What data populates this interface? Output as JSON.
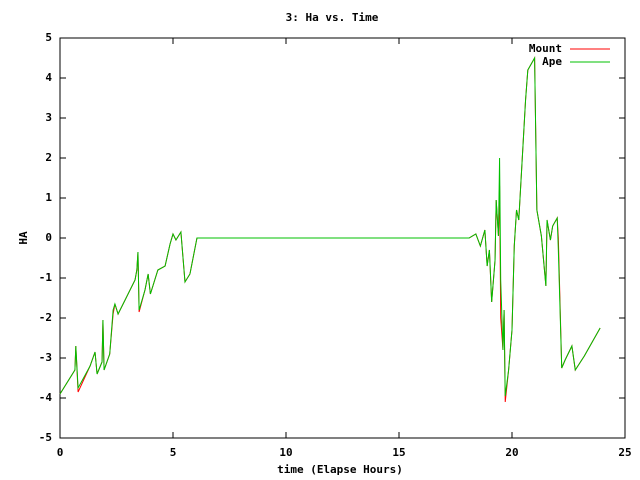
{
  "chart_data": {
    "type": "line",
    "title": "3: Ha vs. Time",
    "x_label": "time (Elapse Hours)",
    "y_label": "HA",
    "x": [
      0,
      0.66,
      0.7,
      0.8,
      1.33,
      1.55,
      1.64,
      1.86,
      1.9,
      1.95,
      2.2,
      2.35,
      2.43,
      2.57,
      2.88,
      3.32,
      3.4,
      3.45,
      3.5,
      3.76,
      3.9,
      4.0,
      4.33,
      4.65,
      4.87,
      5.0,
      5.13,
      5.35,
      5.53,
      5.75,
      6.06,
      18.1,
      18.4,
      18.6,
      18.8,
      18.9,
      19.0,
      19.1,
      19.25,
      19.3,
      19.4,
      19.45,
      19.5,
      19.6,
      19.65,
      19.7,
      19.85,
      20.0,
      20.1,
      20.2,
      20.3,
      20.35,
      20.6,
      20.7,
      21.0,
      21.1,
      21.3,
      21.5,
      21.55,
      21.7,
      21.8,
      22.0,
      22.05,
      22.2,
      22.35,
      22.65,
      22.8,
      23.2,
      23.9
    ],
    "series": [
      {
        "name": "Mount",
        "color": "#ff0000",
        "values": [
          -3.9,
          -3.3,
          -2.7,
          -3.85,
          -3.2,
          -2.85,
          -3.4,
          -3.1,
          -2.05,
          -3.3,
          -2.9,
          -1.9,
          -1.65,
          -1.9,
          -1.55,
          -1.05,
          -0.8,
          -0.35,
          -1.85,
          -1.3,
          -0.9,
          -1.4,
          -0.8,
          -0.7,
          -0.15,
          0.1,
          -0.05,
          0.15,
          -1.1,
          -0.9,
          0,
          0,
          0.1,
          -0.2,
          0.2,
          -0.7,
          -0.3,
          -1.6,
          -0.55,
          0.95,
          0.05,
          1.3,
          -2.0,
          -2.8,
          -1.8,
          -4.1,
          -3.3,
          -2.3,
          -0.2,
          0.7,
          0.45,
          0.95,
          3.45,
          4.2,
          4.5,
          0.7,
          0.05,
          -1.2,
          0.45,
          -0.05,
          0.3,
          0.5,
          0.0,
          -3.25,
          -3.05,
          -2.7,
          -3.3,
          -2.95,
          -2.25
        ]
      },
      {
        "name": "Ape",
        "color": "#00c000",
        "values": [
          -3.9,
          -3.3,
          -2.7,
          -3.75,
          -3.2,
          -2.85,
          -3.4,
          -3.1,
          -2.05,
          -3.3,
          -2.9,
          -1.8,
          -1.65,
          -1.9,
          -1.55,
          -1.05,
          -0.8,
          -0.35,
          -1.8,
          -1.3,
          -0.9,
          -1.4,
          -0.8,
          -0.7,
          -0.15,
          0.1,
          -0.05,
          0.15,
          -1.1,
          -0.9,
          0,
          0,
          0.1,
          -0.2,
          0.2,
          -0.7,
          -0.3,
          -1.6,
          -0.55,
          0.95,
          0.05,
          2.0,
          -1.05,
          -2.8,
          -1.8,
          -3.95,
          -3.3,
          -2.3,
          -0.2,
          0.7,
          0.45,
          0.95,
          3.45,
          4.2,
          4.5,
          0.7,
          0.05,
          -1.2,
          0.45,
          -0.05,
          0.3,
          0.5,
          -0.3,
          -3.25,
          -3.05,
          -2.7,
          -3.3,
          -2.95,
          -2.25
        ]
      }
    ],
    "xlim": [
      0,
      25
    ],
    "xticks": [
      0,
      5,
      10,
      15,
      20,
      25
    ],
    "ylim": [
      -5,
      5
    ],
    "yticks": [
      -5,
      -4,
      -3,
      -2,
      -1,
      0,
      1,
      2,
      3,
      4,
      5
    ],
    "legend": "top-right"
  }
}
